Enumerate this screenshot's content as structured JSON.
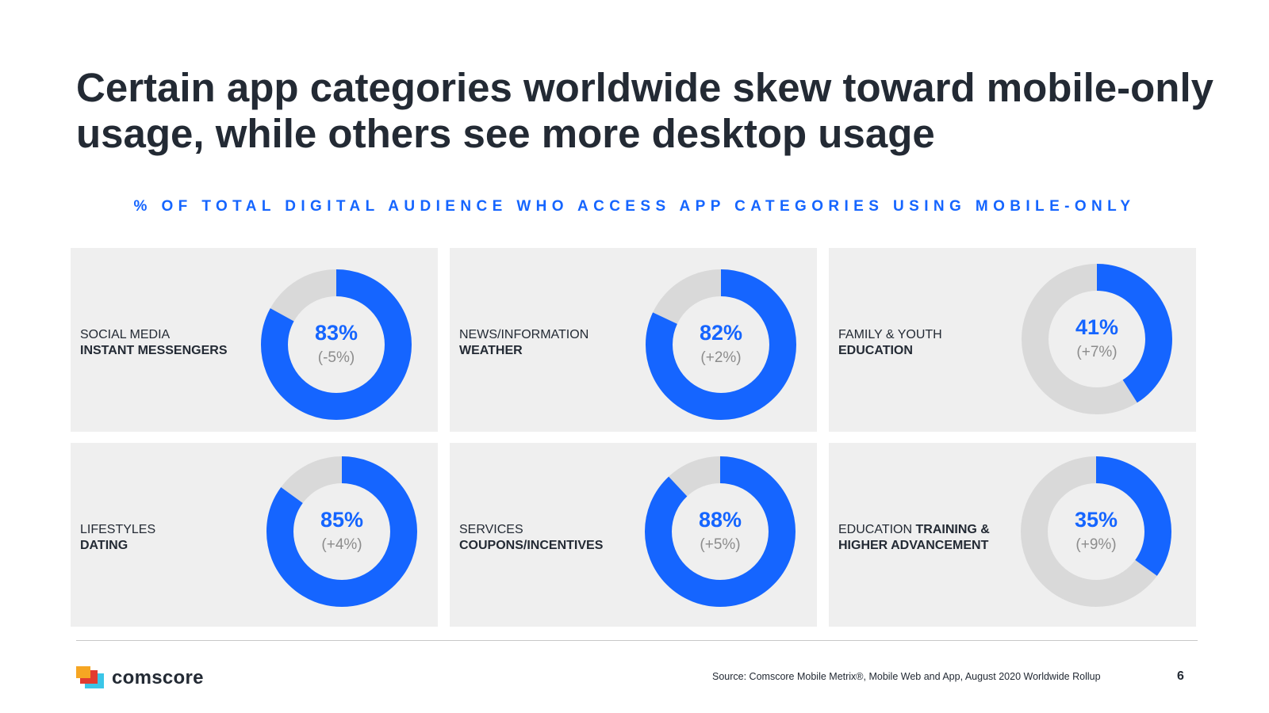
{
  "title": "Certain app categories worldwide skew toward mobile-only usage, while others see more desktop usage",
  "subtitle": "% OF TOTAL DIGITAL AUDIENCE WHO ACCESS APP CATEGORIES USING MOBILE-ONLY",
  "colors": {
    "accent": "#1565ff",
    "remainder": "#d9d9d9",
    "panel": "#efefef",
    "text": "#232a34",
    "muted": "#8c8c8c"
  },
  "chart_data": {
    "type": "pie",
    "variant": "donut",
    "title": "% OF TOTAL DIGITAL AUDIENCE WHO ACCESS APP CATEGORIES USING MOBILE-ONLY",
    "unit": "%",
    "categories": [
      {
        "category": "SOCIAL MEDIA",
        "subcategory": "INSTANT MESSENGERS",
        "value": 83,
        "value_label": "83%",
        "change": -5,
        "change_label": "(-5%)"
      },
      {
        "category": "NEWS/INFORMATION",
        "subcategory": "WEATHER",
        "value": 82,
        "value_label": "82%",
        "change": 2,
        "change_label": "(+2%)"
      },
      {
        "category": "FAMILY & YOUTH",
        "subcategory": "EDUCATION",
        "value": 41,
        "value_label": "41%",
        "change": 7,
        "change_label": "(+7%)"
      },
      {
        "category": "LIFESTYLES",
        "subcategory": "DATING",
        "value": 85,
        "value_label": "85%",
        "change": 4,
        "change_label": "(+4%)"
      },
      {
        "category": "SERVICES",
        "subcategory": "COUPONS/INCENTIVES",
        "value": 88,
        "value_label": "88%",
        "change": 5,
        "change_label": "(+5%)"
      },
      {
        "category": "EDUCATION",
        "subcategory": "TRAINING & HIGHER ADVANCEMENT",
        "subcategory_lines": [
          "TRAINING &",
          "HIGHER ADVANCEMENT"
        ],
        "value": 35,
        "value_label": "35%",
        "change": 9,
        "change_label": "(+9%)"
      }
    ]
  },
  "footer": {
    "brand": "comscore",
    "source": "Source: Comscore Mobile Metrix®, Mobile Web and App, August 2020 Worldwide Rollup",
    "page_number": "6"
  }
}
